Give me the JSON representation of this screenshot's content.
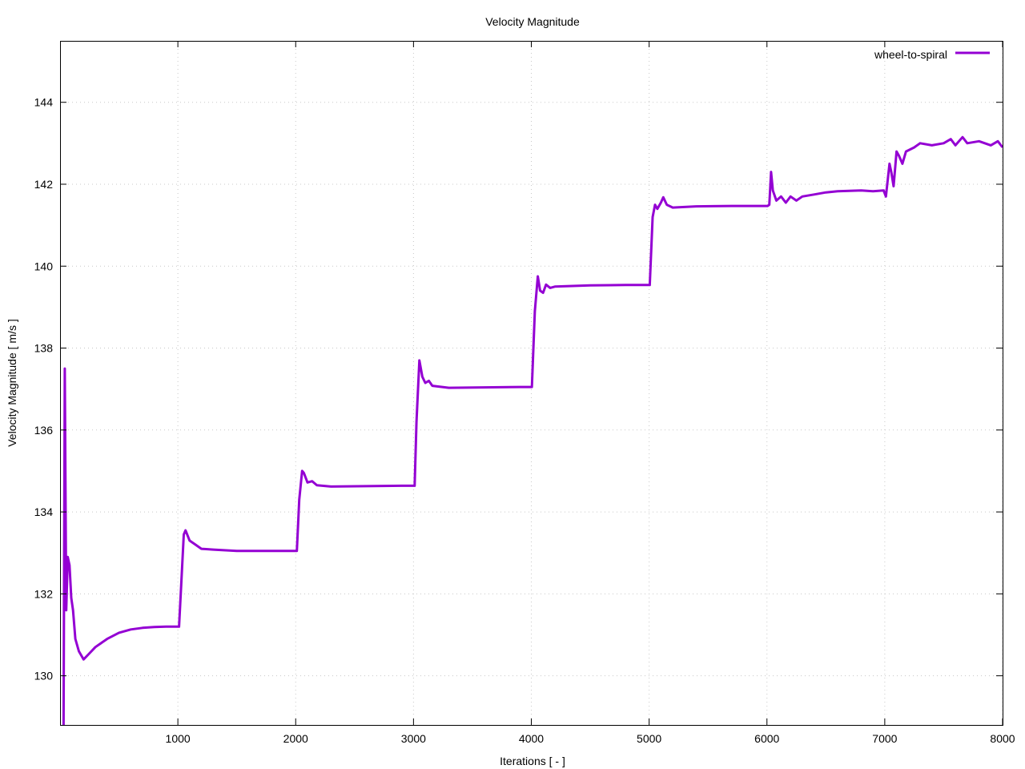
{
  "chart_data": {
    "type": "line",
    "title": "Velocity Magnitude",
    "xlabel": "Iterations [ - ]",
    "ylabel": "Velocity Magnitude [ m/s ]",
    "xlim": [
      0,
      8000
    ],
    "ylim": [
      128.8,
      145.5
    ],
    "xticks": [
      1000,
      2000,
      3000,
      4000,
      5000,
      6000,
      7000,
      8000
    ],
    "xtick_labels": [
      "1000",
      "2000",
      "3000",
      "4000",
      "5000",
      "6000",
      "7000",
      "8000"
    ],
    "yticks": [
      130,
      132,
      134,
      136,
      138,
      140,
      142,
      144
    ],
    "ytick_labels": [
      "130",
      "132",
      "134",
      "136",
      "138",
      "140",
      "142",
      "144"
    ],
    "grid": true,
    "legend_position": "top-right",
    "series": [
      {
        "name": "wheel-to-spiral",
        "color": "#9400d3",
        "points": [
          [
            30,
            128.8
          ],
          [
            40,
            137.5
          ],
          [
            52,
            131.6
          ],
          [
            65,
            132.9
          ],
          [
            80,
            132.7
          ],
          [
            95,
            131.9
          ],
          [
            110,
            131.6
          ],
          [
            130,
            130.9
          ],
          [
            160,
            130.6
          ],
          [
            200,
            130.4
          ],
          [
            250,
            130.55
          ],
          [
            300,
            130.7
          ],
          [
            400,
            130.9
          ],
          [
            500,
            131.05
          ],
          [
            600,
            131.13
          ],
          [
            700,
            131.17
          ],
          [
            800,
            131.19
          ],
          [
            900,
            131.2
          ],
          [
            1010,
            131.2
          ],
          [
            1030,
            132.3
          ],
          [
            1050,
            133.45
          ],
          [
            1065,
            133.55
          ],
          [
            1100,
            133.3
          ],
          [
            1150,
            133.2
          ],
          [
            1200,
            133.1
          ],
          [
            1300,
            133.08
          ],
          [
            1500,
            133.05
          ],
          [
            1800,
            133.05
          ],
          [
            2010,
            133.05
          ],
          [
            2030,
            134.3
          ],
          [
            2055,
            135.0
          ],
          [
            2070,
            134.95
          ],
          [
            2100,
            134.72
          ],
          [
            2140,
            134.75
          ],
          [
            2180,
            134.65
          ],
          [
            2300,
            134.62
          ],
          [
            2600,
            134.63
          ],
          [
            2900,
            134.64
          ],
          [
            3010,
            134.64
          ],
          [
            3025,
            136.2
          ],
          [
            3050,
            137.7
          ],
          [
            3075,
            137.3
          ],
          [
            3100,
            137.15
          ],
          [
            3130,
            137.2
          ],
          [
            3160,
            137.08
          ],
          [
            3300,
            137.03
          ],
          [
            3600,
            137.04
          ],
          [
            3900,
            137.05
          ],
          [
            4005,
            137.05
          ],
          [
            4030,
            138.9
          ],
          [
            4055,
            139.75
          ],
          [
            4075,
            139.4
          ],
          [
            4100,
            139.35
          ],
          [
            4125,
            139.55
          ],
          [
            4160,
            139.47
          ],
          [
            4200,
            139.5
          ],
          [
            4500,
            139.53
          ],
          [
            4800,
            139.54
          ],
          [
            5005,
            139.54
          ],
          [
            5030,
            141.2
          ],
          [
            5050,
            141.5
          ],
          [
            5070,
            141.4
          ],
          [
            5100,
            141.55
          ],
          [
            5120,
            141.68
          ],
          [
            5150,
            141.5
          ],
          [
            5200,
            141.43
          ],
          [
            5400,
            141.46
          ],
          [
            5700,
            141.47
          ],
          [
            6005,
            141.47
          ],
          [
            6020,
            141.5
          ],
          [
            6035,
            142.3
          ],
          [
            6050,
            141.85
          ],
          [
            6080,
            141.6
          ],
          [
            6120,
            141.7
          ],
          [
            6160,
            141.55
          ],
          [
            6200,
            141.7
          ],
          [
            6250,
            141.6
          ],
          [
            6300,
            141.7
          ],
          [
            6400,
            141.75
          ],
          [
            6500,
            141.8
          ],
          [
            6600,
            141.83
          ],
          [
            6700,
            141.84
          ],
          [
            6800,
            141.85
          ],
          [
            6900,
            141.83
          ],
          [
            6990,
            141.85
          ],
          [
            7010,
            141.7
          ],
          [
            7040,
            142.5
          ],
          [
            7055,
            142.3
          ],
          [
            7075,
            141.95
          ],
          [
            7100,
            142.8
          ],
          [
            7120,
            142.7
          ],
          [
            7150,
            142.5
          ],
          [
            7180,
            142.8
          ],
          [
            7250,
            142.9
          ],
          [
            7300,
            143.0
          ],
          [
            7400,
            142.95
          ],
          [
            7500,
            143.0
          ],
          [
            7560,
            143.1
          ],
          [
            7600,
            142.95
          ],
          [
            7660,
            143.15
          ],
          [
            7700,
            143.0
          ],
          [
            7800,
            143.05
          ],
          [
            7900,
            142.95
          ],
          [
            7960,
            143.05
          ],
          [
            8000,
            142.9
          ]
        ]
      }
    ]
  }
}
